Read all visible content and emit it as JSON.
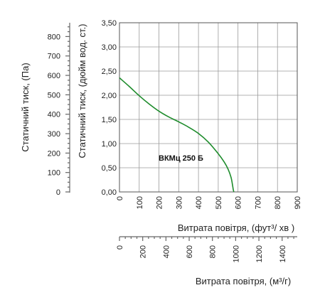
{
  "chart_data": {
    "type": "line",
    "title": "",
    "series_label": "ВКМц 250 Б",
    "series_color": "#1e8c2c",
    "y_left_label": "Статичний тиск, (Па)",
    "y_left_ticks": [
      "0",
      "100",
      "200",
      "300",
      "400",
      "500",
      "600",
      "700",
      "800"
    ],
    "y_left_ylim": [
      0,
      871
    ],
    "y_label": "Статичний тиск, (дюйм вод. ст.)",
    "y_ticks": [
      "0,00",
      "0,50",
      "1,00",
      "1,50",
      "2,00",
      "2,50",
      "3,00",
      "3,50"
    ],
    "ylim": [
      0,
      3.5
    ],
    "x_label": "Витрата повітря, (фут³/ хв )",
    "x_ticks": [
      "0",
      "100",
      "200",
      "300",
      "400",
      "500",
      "600",
      "700",
      "800",
      "900"
    ],
    "xlim": [
      0,
      900
    ],
    "x2_label": "Витрата повітря, (м³/г)",
    "x2_ticks": [
      "0",
      "200",
      "400",
      "600",
      "800",
      "1000",
      "1200",
      "1400"
    ],
    "x2lim": [
      0,
      1530
    ],
    "grid": true,
    "series": [
      {
        "name": "ВКМц 250 Б",
        "x": [
          0,
          50,
          100,
          150,
          200,
          250,
          300,
          350,
          400,
          450,
          500,
          530,
          550,
          565,
          572,
          576,
          579
        ],
        "y": [
          2.36,
          2.18,
          1.99,
          1.82,
          1.67,
          1.55,
          1.45,
          1.34,
          1.21,
          1.03,
          0.79,
          0.62,
          0.47,
          0.3,
          0.15,
          0.05,
          0.0
        ]
      }
    ]
  }
}
